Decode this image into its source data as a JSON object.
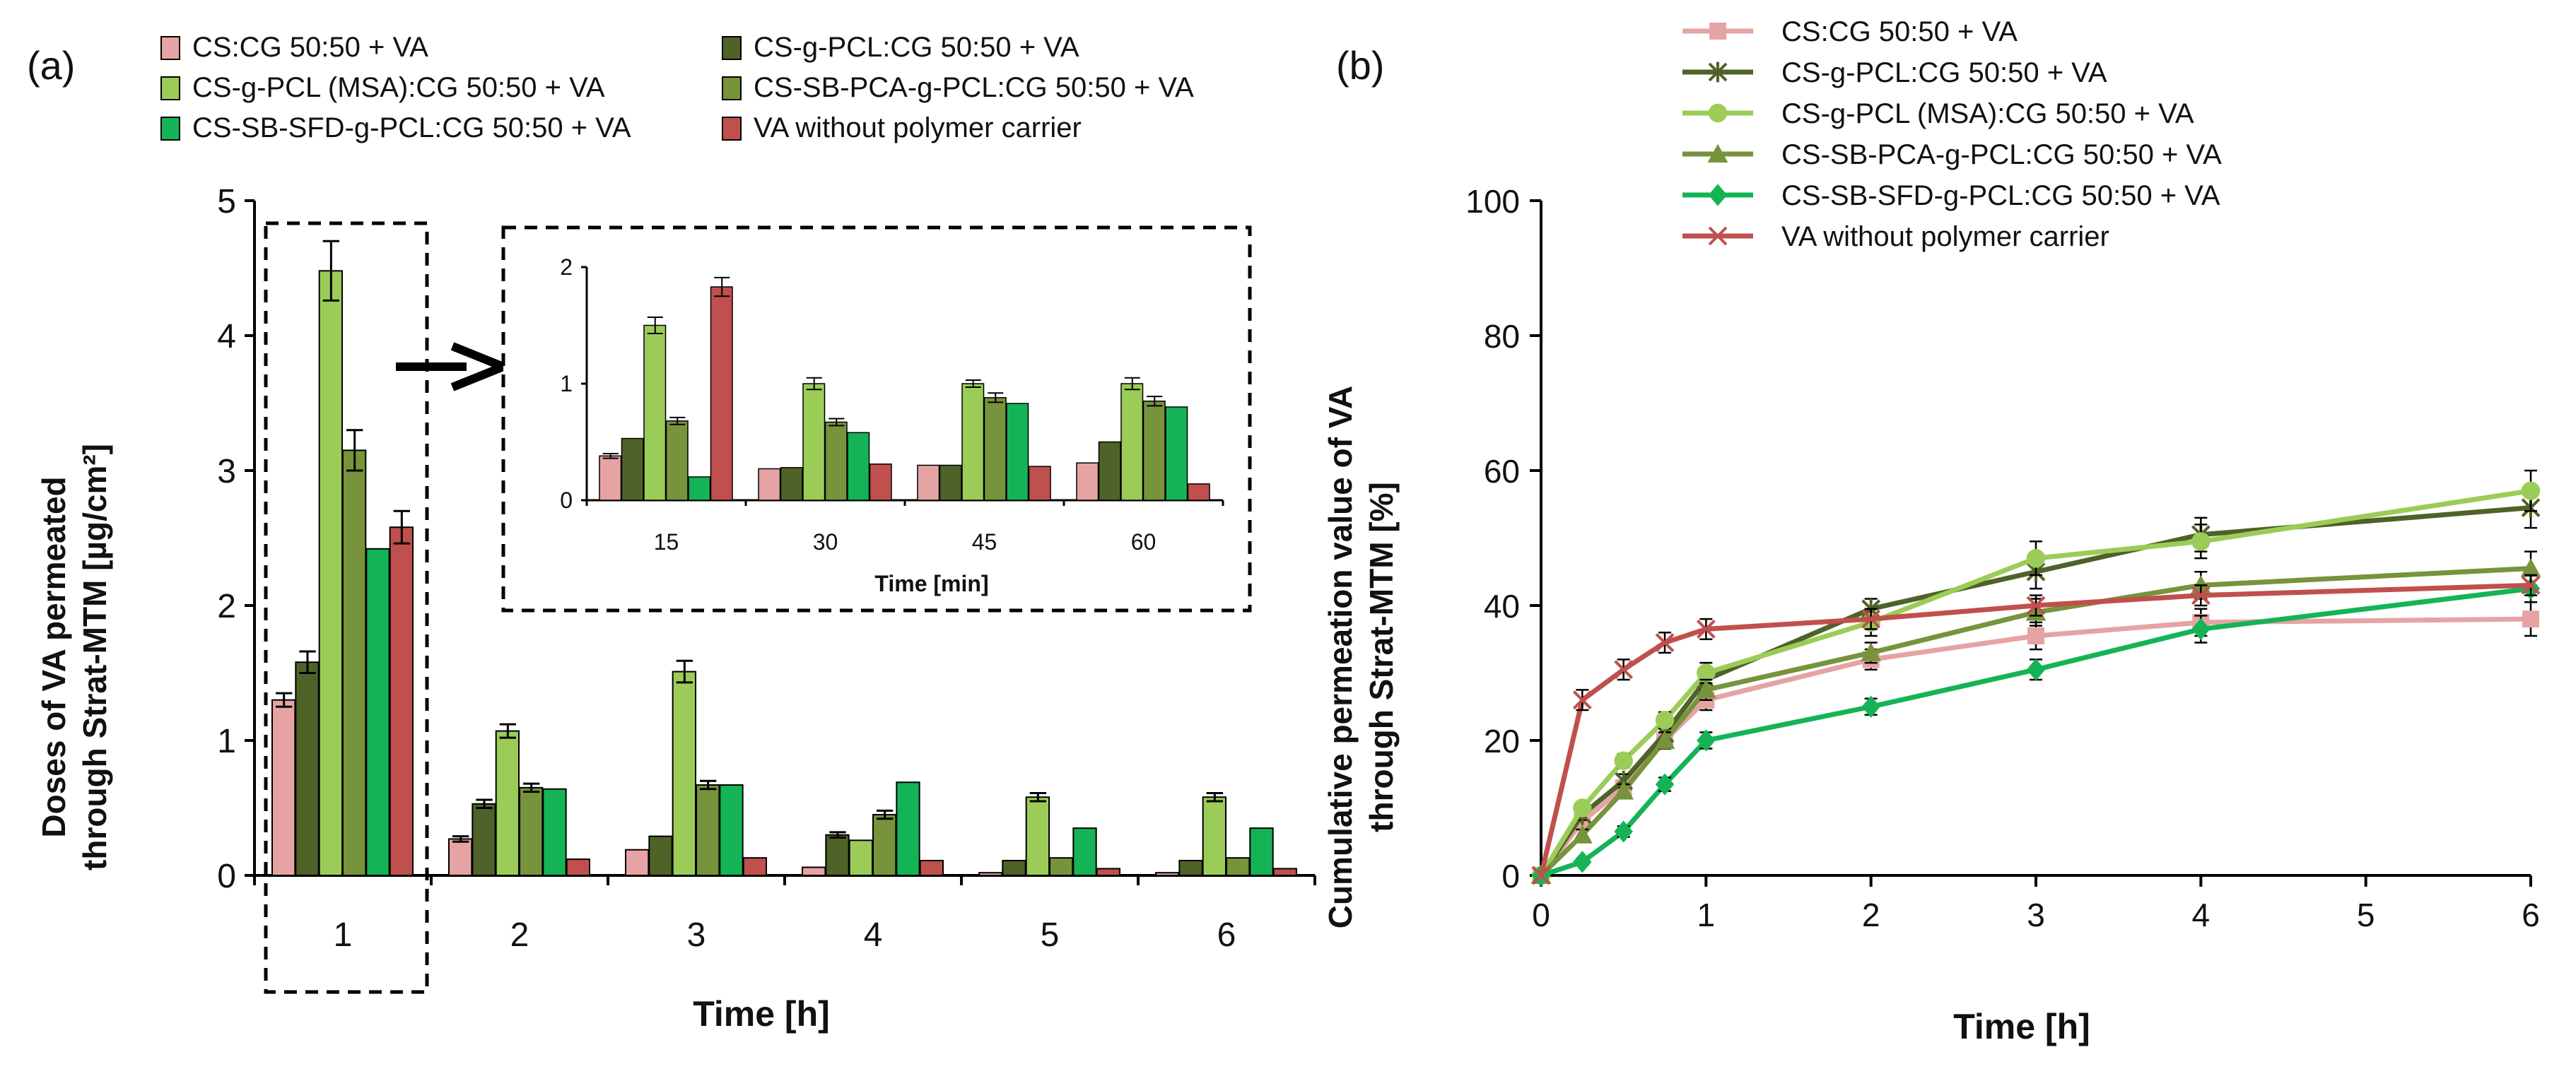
{
  "panel_a_label": "(a)",
  "panel_b_label": "(b)",
  "series_colors": [
    "#e6a3a3",
    "#4f6228",
    "#9bcc58",
    "#77933c",
    "#14b456",
    "#c0504d"
  ],
  "line_markers": [
    "square",
    "star",
    "circle",
    "triangle",
    "diamond",
    "x"
  ],
  "chart_data": [
    {
      "id": "main-bar",
      "type": "bar",
      "title": "",
      "xlabel": "Time [h]",
      "ylabel_line1": "Doses of VA permeated",
      "ylabel_line2": "through Strat-MTM [µg/cm²]",
      "categories": [
        "1",
        "2",
        "3",
        "4",
        "5",
        "6"
      ],
      "ylim": [
        0,
        5
      ],
      "yticks": [
        "0",
        "1",
        "2",
        "3",
        "4",
        "5"
      ],
      "series": [
        {
          "name": "CS:CG 50:50 + VA",
          "values": [
            1.3,
            0.27,
            0.19,
            0.06,
            0.02,
            0.02
          ],
          "errors": [
            0.05,
            0.02,
            0.0,
            0.0,
            0.0,
            0.0
          ]
        },
        {
          "name": "CS-g-PCL:CG 50:50 + VA",
          "values": [
            1.58,
            0.53,
            0.29,
            0.3,
            0.11,
            0.11
          ],
          "errors": [
            0.08,
            0.03,
            0.0,
            0.02,
            0.0,
            0.0
          ]
        },
        {
          "name": "CS-g-PCL (MSA):CG 50:50 + VA",
          "values": [
            4.48,
            1.07,
            1.51,
            0.26,
            0.58,
            0.58
          ],
          "errors": [
            0.22,
            0.05,
            0.08,
            0.0,
            0.03,
            0.03
          ]
        },
        {
          "name": "CS-SB-PCA-g-PCL:CG 50:50 + VA",
          "values": [
            3.15,
            0.65,
            0.67,
            0.45,
            0.13,
            0.13
          ],
          "errors": [
            0.15,
            0.03,
            0.03,
            0.03,
            0.0,
            0.0
          ]
        },
        {
          "name": "CS-SB-SFD-g-PCL:CG 50:50 + VA",
          "values": [
            2.42,
            0.64,
            0.67,
            0.69,
            0.35,
            0.35
          ],
          "errors": [
            0.0,
            0.0,
            0.0,
            0.0,
            0.0,
            0.0
          ]
        },
        {
          "name": "VA  without polymer carrier",
          "values": [
            2.58,
            0.12,
            0.13,
            0.11,
            0.05,
            0.05
          ],
          "errors": [
            0.12,
            0.0,
            0.0,
            0.0,
            0.0,
            0.0
          ]
        }
      ],
      "legend": [
        "CS:CG 50:50 + VA",
        "CS-g-PCL:CG 50:50 + VA",
        "CS-g-PCL (MSA):CG 50:50 + VA",
        "CS-SB-PCA-g-PCL:CG 50:50 + VA",
        "CS-SB-SFD-g-PCL:CG 50:50 + VA",
        "VA  without polymer carrier"
      ]
    },
    {
      "id": "inset-bar",
      "type": "bar",
      "title": "",
      "xlabel": "Time [min]",
      "categories": [
        "15",
        "30",
        "45",
        "60"
      ],
      "ylim": [
        0,
        2
      ],
      "yticks": [
        "0",
        "1",
        "2"
      ],
      "series": [
        {
          "name": "CS:CG 50:50 + VA",
          "values": [
            0.38,
            0.27,
            0.3,
            0.32
          ],
          "errors": [
            0.02,
            0.0,
            0.0,
            0.0
          ]
        },
        {
          "name": "CS-g-PCL:CG 50:50 + VA",
          "values": [
            0.53,
            0.28,
            0.3,
            0.5
          ],
          "errors": [
            0.0,
            0.0,
            0.0,
            0.0
          ]
        },
        {
          "name": "CS-g-PCL (MSA):CG 50:50 + VA",
          "values": [
            1.5,
            1.0,
            1.0,
            1.0
          ],
          "errors": [
            0.07,
            0.05,
            0.03,
            0.05
          ]
        },
        {
          "name": "CS-SB-PCA-g-PCL:CG 50:50 + VA",
          "values": [
            0.68,
            0.67,
            0.88,
            0.85
          ],
          "errors": [
            0.03,
            0.03,
            0.04,
            0.04
          ]
        },
        {
          "name": "CS-SB-SFD-g-PCL:CG 50:50 + VA",
          "values": [
            0.2,
            0.58,
            0.83,
            0.8
          ],
          "errors": [
            0.0,
            0.0,
            0.0,
            0.0
          ]
        },
        {
          "name": "VA  without polymer carrier",
          "values": [
            1.83,
            0.31,
            0.29,
            0.14
          ],
          "errors": [
            0.08,
            0.0,
            0.0,
            0.0
          ]
        }
      ]
    },
    {
      "id": "line-chart",
      "type": "line",
      "title": "",
      "xlabel": "Time [h]",
      "ylabel_line1": "Cumulative permeation value of VA",
      "ylabel_line2": "through Strat-MTM  [%]",
      "xlim": [
        0,
        6
      ],
      "ylim": [
        0,
        100
      ],
      "xticks": [
        "0",
        "1",
        "2",
        "3",
        "4",
        "5",
        "6"
      ],
      "yticks": [
        "0",
        "20",
        "40",
        "60",
        "80",
        "100"
      ],
      "x": [
        0,
        0.25,
        0.5,
        0.75,
        1,
        2,
        3,
        4,
        6
      ],
      "series": [
        {
          "name": "CS:CG 50:50 + VA",
          "values": [
            0,
            8,
            13,
            20,
            26,
            32,
            35.5,
            37.5,
            38
          ],
          "errors": [
            0,
            0.8,
            1,
            1.2,
            1.5,
            1.5,
            2,
            2,
            2.5
          ]
        },
        {
          "name": "CS-g-PCL:CG 50:50 + VA",
          "values": [
            0,
            9,
            14,
            21,
            29,
            39.5,
            45,
            50.5,
            54.5
          ],
          "errors": [
            0,
            0.8,
            1,
            1.2,
            1.5,
            1.5,
            2.5,
            2.5,
            3
          ]
        },
        {
          "name": "CS-g-PCL (MSA):CG 50:50 + VA",
          "values": [
            0,
            10,
            17,
            23,
            30,
            37.5,
            47,
            49.5,
            57
          ],
          "errors": [
            0,
            0.8,
            1,
            1.2,
            1.5,
            2,
            2.5,
            2.5,
            3
          ]
        },
        {
          "name": "CS-SB-PCA-g-PCL:CG 50:50 + VA",
          "values": [
            0,
            6,
            12.5,
            20,
            27.5,
            33,
            39,
            43,
            45.5
          ],
          "errors": [
            0,
            0.8,
            1,
            1.2,
            1.5,
            1.5,
            2,
            2,
            2.5
          ]
        },
        {
          "name": "CS-SB-SFD-g-PCL:CG 50:50 + VA",
          "values": [
            0,
            2,
            6.5,
            13.5,
            20,
            25,
            30.5,
            36.5,
            42.5
          ],
          "errors": [
            0,
            0.5,
            0.8,
            1,
            1.2,
            1.2,
            1.5,
            2,
            2
          ]
        },
        {
          "name": "VA  without polymer carrier",
          "values": [
            0,
            26,
            30.5,
            34.5,
            36.5,
            38,
            40,
            41.5,
            43
          ],
          "errors": [
            0,
            1.5,
            1.5,
            1.5,
            1.5,
            1.5,
            1.5,
            1.5,
            1.5
          ]
        }
      ],
      "legend": [
        "CS:CG 50:50 + VA",
        "CS-g-PCL:CG 50:50 + VA",
        "CS-g-PCL (MSA):CG 50:50 + VA",
        "CS-SB-PCA-g-PCL:CG 50:50 + VA",
        "CS-SB-SFD-g-PCL:CG 50:50 + VA",
        "VA  without polymer carrier"
      ]
    }
  ]
}
